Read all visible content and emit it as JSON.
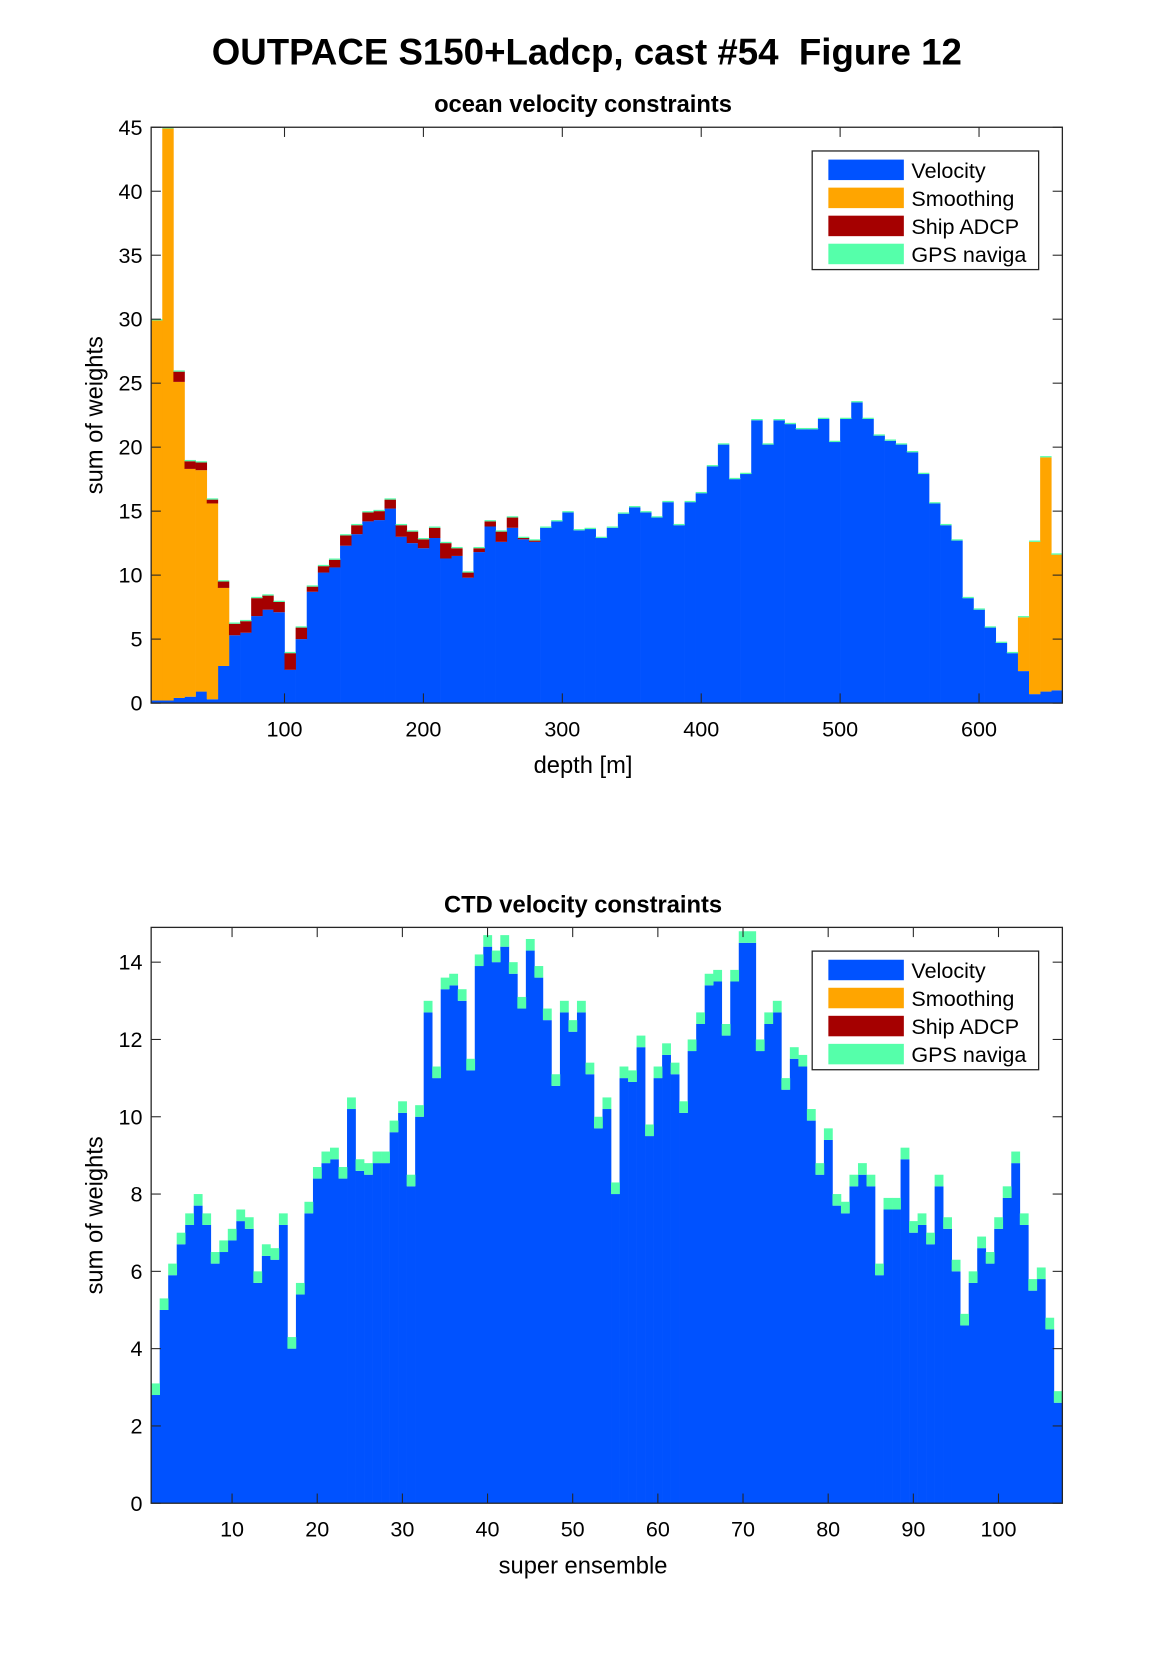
{
  "figure_title": "OUTPACE S150+Ladcp, cast #54  Figure 12",
  "chart_data": [
    {
      "type": "bar",
      "stacked": true,
      "title": "ocean velocity constraints",
      "x_label": "depth [m]",
      "y_label": "sum of weights",
      "legend": "northeast",
      "x": [
        8,
        16,
        24,
        32,
        40,
        48,
        56,
        64,
        72,
        80,
        88,
        96,
        104,
        112,
        120,
        128,
        136,
        144,
        152,
        160,
        168,
        176,
        184,
        192,
        200,
        208,
        216,
        224,
        232,
        240,
        248,
        256,
        264,
        272,
        280,
        288,
        296,
        304,
        312,
        320,
        328,
        336,
        344,
        352,
        360,
        368,
        376,
        384,
        392,
        400,
        408,
        416,
        424,
        432,
        440,
        448,
        456,
        464,
        472,
        480,
        488,
        496,
        504,
        512,
        520,
        528,
        536,
        544,
        552,
        560,
        568,
        576,
        584,
        592,
        600,
        608,
        616,
        624,
        632,
        640,
        648,
        656
      ],
      "xlim": [
        4,
        660
      ],
      "xticks": [
        100,
        200,
        300,
        400,
        500,
        600
      ],
      "ylim": [
        0,
        45
      ],
      "yticks": [
        0,
        5,
        10,
        15,
        20,
        25,
        30,
        35,
        40,
        45
      ],
      "series": [
        {
          "name": "Velocity",
          "color": "#0052ff",
          "values": [
            0.2,
            0.2,
            0.4,
            0.5,
            0.9,
            0.3,
            2.9,
            5.3,
            5.5,
            6.8,
            7.3,
            7.1,
            2.6,
            5.0,
            8.7,
            10.2,
            10.6,
            12.3,
            13.2,
            14.2,
            14.3,
            15.2,
            13.0,
            12.5,
            12.1,
            12.9,
            11.3,
            11.5,
            9.8,
            11.8,
            13.8,
            12.6,
            13.7,
            12.8,
            12.6,
            13.7,
            14.2,
            14.9,
            13.5,
            13.6,
            12.9,
            13.7,
            14.8,
            15.3,
            14.9,
            14.5,
            15.7,
            13.9,
            15.7,
            16.4,
            18.5,
            20.2,
            17.5,
            17.9,
            22.1,
            20.2,
            22.1,
            21.8,
            21.4,
            21.4,
            22.2,
            20.4,
            22.2,
            23.5,
            22.2,
            20.9,
            20.5,
            20.2,
            19.6,
            17.9,
            15.6,
            13.9,
            12.7,
            8.2,
            7.3,
            5.9,
            4.7,
            3.9,
            2.5,
            0.7,
            0.9,
            1.0
          ]
        },
        {
          "name": "Smoothing",
          "color": "#ffa500",
          "values": [
            29.7,
            44.7,
            24.7,
            17.8,
            17.3,
            15.3,
            6.1,
            0,
            0,
            0,
            0,
            0,
            0,
            0,
            0,
            0,
            0,
            0,
            0,
            0,
            0,
            0,
            0,
            0,
            0,
            0,
            0,
            0,
            0,
            0,
            0,
            0,
            0,
            0,
            0,
            0,
            0,
            0,
            0,
            0,
            0,
            0,
            0,
            0,
            0,
            0,
            0,
            0,
            0,
            0,
            0,
            0,
            0,
            0,
            0,
            0,
            0,
            0,
            0,
            0,
            0,
            0,
            0,
            0,
            0,
            0,
            0,
            0,
            0,
            0,
            0,
            0,
            0,
            0,
            0,
            0,
            0,
            0,
            4.2,
            11.9,
            18.3,
            10.6
          ]
        },
        {
          "name": "Ship ADCP",
          "color": "#a50000",
          "values": [
            0,
            0,
            0.8,
            0.6,
            0.6,
            0.3,
            0.5,
            0.9,
            0.9,
            1.4,
            1.1,
            0.8,
            1.3,
            0.9,
            0.4,
            0.5,
            0.6,
            0.8,
            0.7,
            0.7,
            0.7,
            0.7,
            0.9,
            0.9,
            0.7,
            0.8,
            1.2,
            0.6,
            0.4,
            0.3,
            0.4,
            0.8,
            0.8,
            0.1,
            0.1,
            0,
            0,
            0,
            0,
            0,
            0,
            0,
            0,
            0,
            0,
            0,
            0,
            0,
            0,
            0,
            0,
            0,
            0,
            0,
            0,
            0,
            0,
            0,
            0,
            0,
            0,
            0,
            0,
            0,
            0,
            0,
            0,
            0,
            0,
            0,
            0,
            0,
            0,
            0,
            0,
            0,
            0,
            0,
            0,
            0,
            0,
            0
          ]
        },
        {
          "name": "GPS naviga",
          "color": "#55ffaa",
          "values": [
            0.1,
            0.1,
            0.1,
            0.1,
            0.1,
            0.1,
            0.1,
            0.1,
            0.1,
            0.1,
            0.1,
            0.1,
            0.1,
            0.1,
            0.1,
            0.1,
            0.1,
            0.1,
            0.1,
            0.1,
            0.1,
            0.1,
            0.1,
            0.1,
            0.1,
            0.1,
            0.1,
            0.1,
            0.1,
            0.1,
            0.1,
            0.1,
            0.1,
            0.1,
            0.1,
            0.1,
            0.1,
            0.1,
            0.1,
            0.1,
            0.1,
            0.1,
            0.1,
            0.1,
            0.1,
            0.1,
            0.1,
            0.1,
            0.1,
            0.1,
            0.1,
            0.1,
            0.1,
            0.1,
            0.1,
            0.1,
            0.1,
            0.1,
            0.1,
            0.1,
            0.1,
            0.1,
            0.1,
            0.1,
            0.1,
            0.1,
            0.1,
            0.1,
            0.1,
            0.1,
            0.1,
            0.1,
            0.1,
            0.1,
            0.1,
            0.1,
            0.1,
            0.1,
            0.1,
            0.1,
            0.1,
            0.1
          ]
        }
      ]
    },
    {
      "type": "bar",
      "stacked": true,
      "title": "CTD velocity constraints",
      "x_label": "super ensemble",
      "y_label": "sum of weights",
      "legend": "northeast",
      "x": [
        1,
        2,
        3,
        4,
        5,
        6,
        7,
        8,
        9,
        10,
        11,
        12,
        13,
        14,
        15,
        16,
        17,
        18,
        19,
        20,
        21,
        22,
        23,
        24,
        25,
        26,
        27,
        28,
        29,
        30,
        31,
        32,
        33,
        34,
        35,
        36,
        37,
        38,
        39,
        40,
        41,
        42,
        43,
        44,
        45,
        46,
        47,
        48,
        49,
        50,
        51,
        52,
        53,
        54,
        55,
        56,
        57,
        58,
        59,
        60,
        61,
        62,
        63,
        64,
        65,
        66,
        67,
        68,
        69,
        70,
        71,
        72,
        73,
        74,
        75,
        76,
        77,
        78,
        79,
        80,
        81,
        82,
        83,
        84,
        85,
        86,
        87,
        88,
        89,
        90,
        91,
        92,
        93,
        94,
        95,
        96,
        97,
        98,
        99,
        100,
        101,
        102,
        103,
        104,
        105,
        106,
        107
      ],
      "xlim": [
        0.5,
        107.5
      ],
      "xticks": [
        10,
        20,
        30,
        40,
        50,
        60,
        70,
        80,
        90,
        100
      ],
      "ylim": [
        0,
        14.9
      ],
      "yticks": [
        0,
        2,
        4,
        6,
        8,
        10,
        12,
        14
      ],
      "series": [
        {
          "name": "Velocity",
          "color": "#0052ff",
          "values": [
            2.8,
            5.0,
            5.9,
            6.7,
            7.2,
            7.7,
            7.2,
            6.2,
            6.5,
            6.8,
            7.3,
            7.1,
            5.7,
            6.4,
            6.3,
            7.2,
            4.0,
            5.4,
            7.5,
            8.4,
            8.8,
            8.9,
            8.4,
            10.2,
            8.6,
            8.5,
            8.8,
            8.8,
            9.6,
            10.1,
            8.2,
            10.0,
            12.7,
            11.0,
            13.3,
            13.4,
            13.0,
            11.2,
            13.9,
            14.4,
            14.0,
            14.4,
            13.7,
            12.8,
            14.3,
            13.6,
            12.5,
            10.8,
            12.7,
            12.2,
            12.7,
            11.1,
            9.7,
            10.2,
            8.0,
            11.0,
            10.9,
            11.8,
            9.5,
            11.0,
            11.6,
            11.1,
            10.1,
            11.7,
            12.4,
            13.4,
            13.5,
            12.1,
            13.5,
            14.5,
            14.5,
            11.7,
            12.4,
            12.7,
            10.7,
            11.5,
            11.3,
            9.9,
            8.5,
            9.4,
            7.7,
            7.5,
            8.2,
            8.5,
            8.2,
            5.9,
            7.6,
            7.6,
            8.9,
            7.0,
            7.2,
            6.7,
            8.2,
            7.1,
            6.0,
            4.6,
            5.7,
            6.6,
            6.2,
            7.1,
            7.9,
            8.8,
            7.2,
            5.5,
            5.8,
            4.5,
            2.6
          ]
        },
        {
          "name": "Smoothing",
          "color": "#ffa500",
          "values": [
            0,
            0,
            0,
            0,
            0,
            0,
            0,
            0,
            0,
            0,
            0,
            0,
            0,
            0,
            0,
            0,
            0,
            0,
            0,
            0,
            0,
            0,
            0,
            0,
            0,
            0,
            0,
            0,
            0,
            0,
            0,
            0,
            0,
            0,
            0,
            0,
            0,
            0,
            0,
            0,
            0,
            0,
            0,
            0,
            0,
            0,
            0,
            0,
            0,
            0,
            0,
            0,
            0,
            0,
            0,
            0,
            0,
            0,
            0,
            0,
            0,
            0,
            0,
            0,
            0,
            0,
            0,
            0,
            0,
            0,
            0,
            0,
            0,
            0,
            0,
            0,
            0,
            0,
            0,
            0,
            0,
            0,
            0,
            0,
            0,
            0,
            0,
            0,
            0,
            0,
            0,
            0,
            0,
            0,
            0,
            0,
            0,
            0,
            0,
            0,
            0,
            0,
            0,
            0,
            0,
            0,
            0
          ]
        },
        {
          "name": "Ship ADCP",
          "color": "#a50000",
          "values": [
            0,
            0,
            0,
            0,
            0,
            0,
            0,
            0,
            0,
            0,
            0,
            0,
            0,
            0,
            0,
            0,
            0,
            0,
            0,
            0,
            0,
            0,
            0,
            0,
            0,
            0,
            0,
            0,
            0,
            0,
            0,
            0,
            0,
            0,
            0,
            0,
            0,
            0,
            0,
            0,
            0,
            0,
            0,
            0,
            0,
            0,
            0,
            0,
            0,
            0,
            0,
            0,
            0,
            0,
            0,
            0,
            0,
            0,
            0,
            0,
            0,
            0,
            0,
            0,
            0,
            0,
            0,
            0,
            0,
            0,
            0,
            0,
            0,
            0,
            0,
            0,
            0,
            0,
            0,
            0,
            0,
            0,
            0,
            0,
            0,
            0,
            0,
            0,
            0,
            0,
            0,
            0,
            0,
            0,
            0,
            0,
            0,
            0,
            0,
            0,
            0,
            0,
            0,
            0,
            0,
            0,
            0
          ]
        },
        {
          "name": "GPS naviga",
          "color": "#55ffaa",
          "values": [
            0.3,
            0.3,
            0.3,
            0.3,
            0.3,
            0.3,
            0.3,
            0.3,
            0.3,
            0.3,
            0.3,
            0.3,
            0.3,
            0.3,
            0.3,
            0.3,
            0.3,
            0.3,
            0.3,
            0.3,
            0.3,
            0.3,
            0.3,
            0.3,
            0.3,
            0.3,
            0.3,
            0.3,
            0.3,
            0.3,
            0.3,
            0.3,
            0.3,
            0.3,
            0.3,
            0.3,
            0.3,
            0.3,
            0.3,
            0.3,
            0.3,
            0.3,
            0.3,
            0.3,
            0.3,
            0.3,
            0.3,
            0.3,
            0.3,
            0.3,
            0.3,
            0.3,
            0.3,
            0.3,
            0.3,
            0.3,
            0.3,
            0.3,
            0.3,
            0.3,
            0.3,
            0.3,
            0.3,
            0.3,
            0.3,
            0.3,
            0.3,
            0.3,
            0.3,
            0.3,
            0.3,
            0.3,
            0.3,
            0.3,
            0.3,
            0.3,
            0.3,
            0.3,
            0.3,
            0.3,
            0.3,
            0.3,
            0.3,
            0.3,
            0.3,
            0.3,
            0.3,
            0.3,
            0.3,
            0.3,
            0.3,
            0.3,
            0.3,
            0.3,
            0.3,
            0.3,
            0.3,
            0.3,
            0.3,
            0.3,
            0.3,
            0.3,
            0.3,
            0.3,
            0.3,
            0.3,
            0.3
          ]
        }
      ]
    }
  ]
}
